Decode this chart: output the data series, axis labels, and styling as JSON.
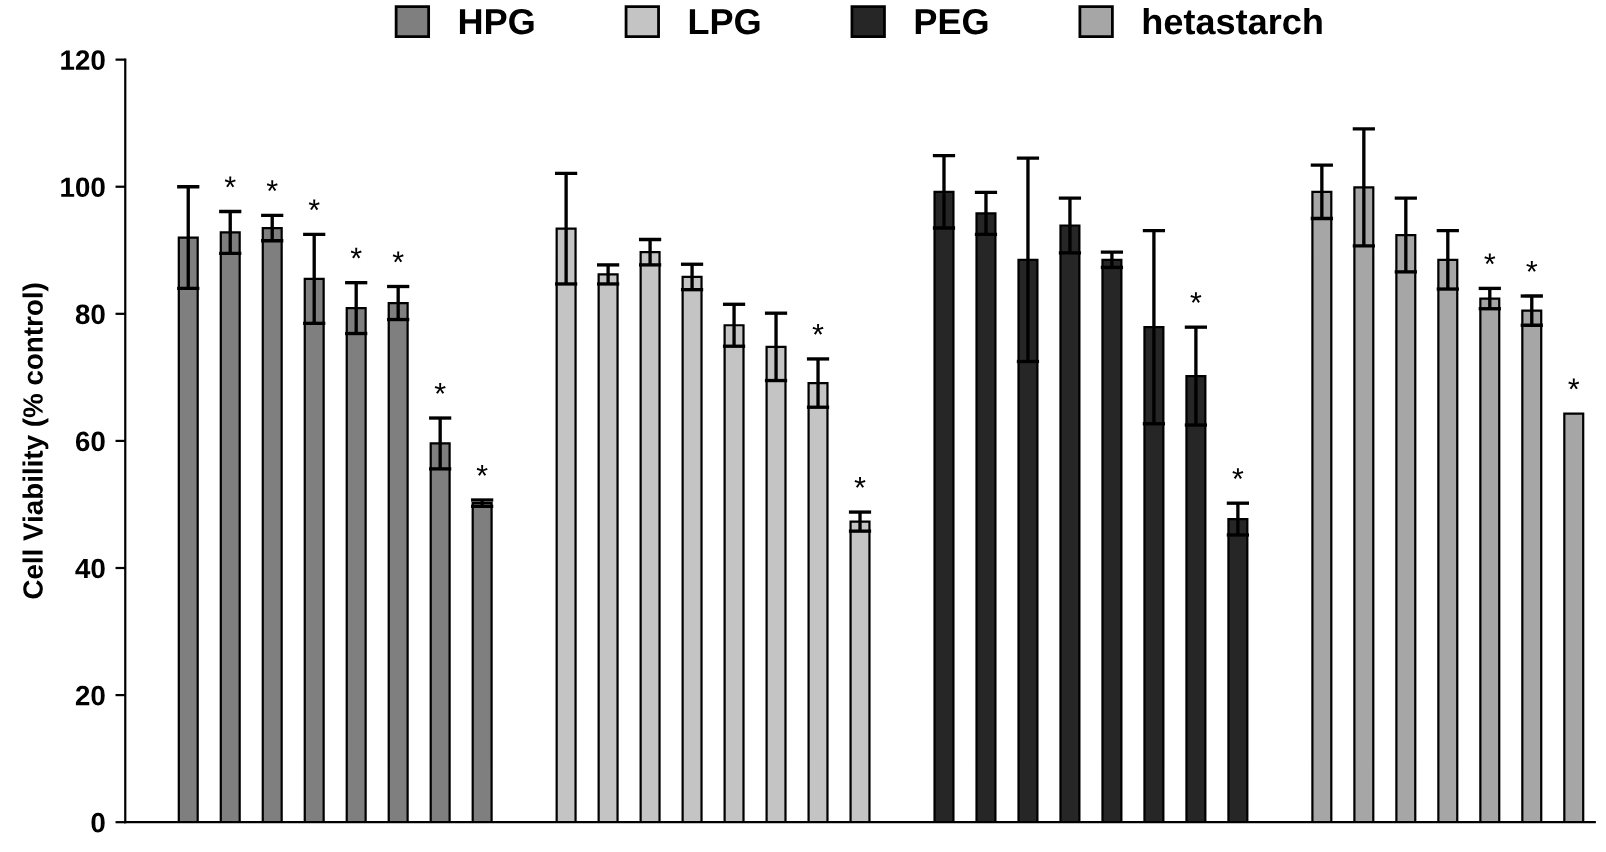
{
  "chart_data": {
    "type": "bar",
    "ylabel": "Cell Viability (% control)",
    "ylim": [
      0,
      120
    ],
    "yticks": [
      0,
      20,
      40,
      60,
      80,
      100,
      120
    ],
    "grid": false,
    "legend": "top",
    "categories": [
      null,
      null,
      null,
      null,
      null,
      null,
      null,
      null,
      null,
      null,
      null,
      null,
      null,
      null,
      null,
      null,
      null,
      null,
      null,
      null,
      null,
      null,
      null,
      null,
      null,
      null,
      null,
      null,
      null,
      null,
      null,
      null,
      null,
      null,
      null
    ],
    "series": [
      {
        "name": "HPG",
        "color": "#7f7f7f",
        "values": [
          null,
          92,
          92.8,
          93.5,
          85.5,
          80.9,
          81.7,
          59.6,
          50.2,
          null,
          null,
          null,
          null,
          null,
          null,
          null,
          null,
          null,
          null,
          null,
          null,
          null,
          null,
          null,
          null,
          null,
          null,
          null,
          null,
          null,
          null,
          null,
          null,
          null,
          null
        ],
        "errors": [
          null,
          8,
          3.3,
          2,
          7,
          4,
          2.6,
          4,
          0.5,
          null,
          null,
          null,
          null,
          null,
          null,
          null,
          null,
          null,
          null,
          null,
          null,
          null,
          null,
          null,
          null,
          null,
          null,
          null,
          null,
          null,
          null,
          null,
          null,
          null,
          null
        ],
        "value_labels": [
          null,
          null,
          "*",
          "*",
          "*",
          "*",
          "*",
          "*",
          "*",
          null,
          null,
          null,
          null,
          null,
          null,
          null,
          null,
          null,
          null,
          null,
          null,
          null,
          null,
          null,
          null,
          null,
          null,
          null,
          null,
          null,
          null,
          null,
          null,
          null,
          null
        ]
      },
      {
        "name": "LPG",
        "color": "#c4c4c4",
        "values": [
          null,
          null,
          null,
          null,
          null,
          null,
          null,
          null,
          null,
          null,
          93.4,
          86.2,
          89.7,
          85.8,
          78.2,
          74.8,
          69.1,
          47.3,
          null,
          null,
          null,
          null,
          null,
          null,
          null,
          null,
          null,
          null,
          null,
          null,
          null,
          null,
          null,
          null,
          null
        ],
        "errors": [
          null,
          null,
          null,
          null,
          null,
          null,
          null,
          null,
          null,
          null,
          8.7,
          1.5,
          2,
          2,
          3.3,
          5.3,
          3.8,
          1.5,
          null,
          null,
          null,
          null,
          null,
          null,
          null,
          null,
          null,
          null,
          null,
          null,
          null,
          null,
          null,
          null,
          null
        ],
        "value_labels": [
          null,
          null,
          null,
          null,
          null,
          null,
          null,
          null,
          null,
          null,
          null,
          null,
          null,
          null,
          null,
          null,
          "*",
          "*",
          null,
          null,
          null,
          null,
          null,
          null,
          null,
          null,
          null,
          null,
          null,
          null,
          null,
          null,
          null,
          null,
          null
        ]
      },
      {
        "name": "PEG",
        "color": "#262626",
        "values": [
          null,
          null,
          null,
          null,
          null,
          null,
          null,
          null,
          null,
          null,
          null,
          null,
          null,
          null,
          null,
          null,
          null,
          null,
          null,
          99.2,
          95.8,
          88.5,
          93.9,
          88.5,
          77.9,
          70.2,
          47.7,
          null,
          null,
          null,
          null,
          null,
          null,
          null,
          null
        ],
        "errors": [
          null,
          null,
          null,
          null,
          null,
          null,
          null,
          null,
          null,
          null,
          null,
          null,
          null,
          null,
          null,
          null,
          null,
          null,
          null,
          5.7,
          3.3,
          16,
          4.3,
          1.2,
          15.2,
          7.7,
          2.5,
          null,
          null,
          null,
          null,
          null,
          null,
          null,
          null
        ],
        "value_labels": [
          null,
          null,
          null,
          null,
          null,
          null,
          null,
          null,
          null,
          null,
          null,
          null,
          null,
          null,
          null,
          null,
          null,
          null,
          null,
          null,
          null,
          null,
          null,
          null,
          null,
          "*",
          "*",
          null,
          null,
          null,
          null,
          null,
          null,
          null,
          null
        ]
      },
      {
        "name": "hetastarch",
        "color": "#a6a6a6",
        "values": [
          null,
          null,
          null,
          null,
          null,
          null,
          null,
          null,
          null,
          null,
          null,
          null,
          null,
          null,
          null,
          null,
          null,
          null,
          null,
          null,
          null,
          null,
          null,
          null,
          null,
          null,
          null,
          null,
          99.2,
          99.9,
          92.4,
          88.5,
          82.4,
          80.5,
          64.3
        ],
        "errors": [
          null,
          null,
          null,
          null,
          null,
          null,
          null,
          null,
          null,
          null,
          null,
          null,
          null,
          null,
          null,
          null,
          null,
          null,
          null,
          null,
          null,
          null,
          null,
          null,
          null,
          null,
          null,
          null,
          4.2,
          9.2,
          5.8,
          4.6,
          1.6,
          2.3,
          null
        ],
        "value_labels": [
          null,
          null,
          null,
          null,
          null,
          null,
          null,
          null,
          null,
          null,
          null,
          null,
          null,
          null,
          null,
          null,
          null,
          null,
          null,
          null,
          null,
          null,
          null,
          null,
          null,
          null,
          null,
          null,
          null,
          null,
          null,
          null,
          "*",
          "*",
          "*"
        ]
      }
    ]
  }
}
